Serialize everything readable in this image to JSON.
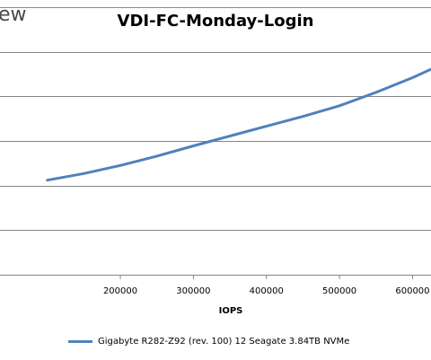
{
  "logo_text": "ew",
  "chart_data": {
    "type": "line",
    "title": "VDI-FC-Monday-Login",
    "xlabel": "IOPS",
    "ylabel": "",
    "x_ticks": [
      200000,
      300000,
      400000,
      500000,
      600000
    ],
    "xlim": [
      50000,
      640000
    ],
    "ylim": [
      0,
      6
    ],
    "y_gridlines": [
      1,
      2,
      3,
      4,
      5,
      6
    ],
    "grid": "horizontal",
    "legend_position": "bottom",
    "series": [
      {
        "name": "Gigabyte R282-Z92 (rev. 100) 12 Seagate 3.84TB NVMe",
        "color": "#4f81bd",
        "x": [
          100000,
          150000,
          200000,
          250000,
          300000,
          350000,
          400000,
          450000,
          500000,
          550000,
          600000,
          640000
        ],
        "y": [
          2.12,
          2.27,
          2.45,
          2.66,
          2.89,
          3.11,
          3.33,
          3.55,
          3.79,
          4.09,
          4.42,
          4.72
        ]
      }
    ]
  }
}
